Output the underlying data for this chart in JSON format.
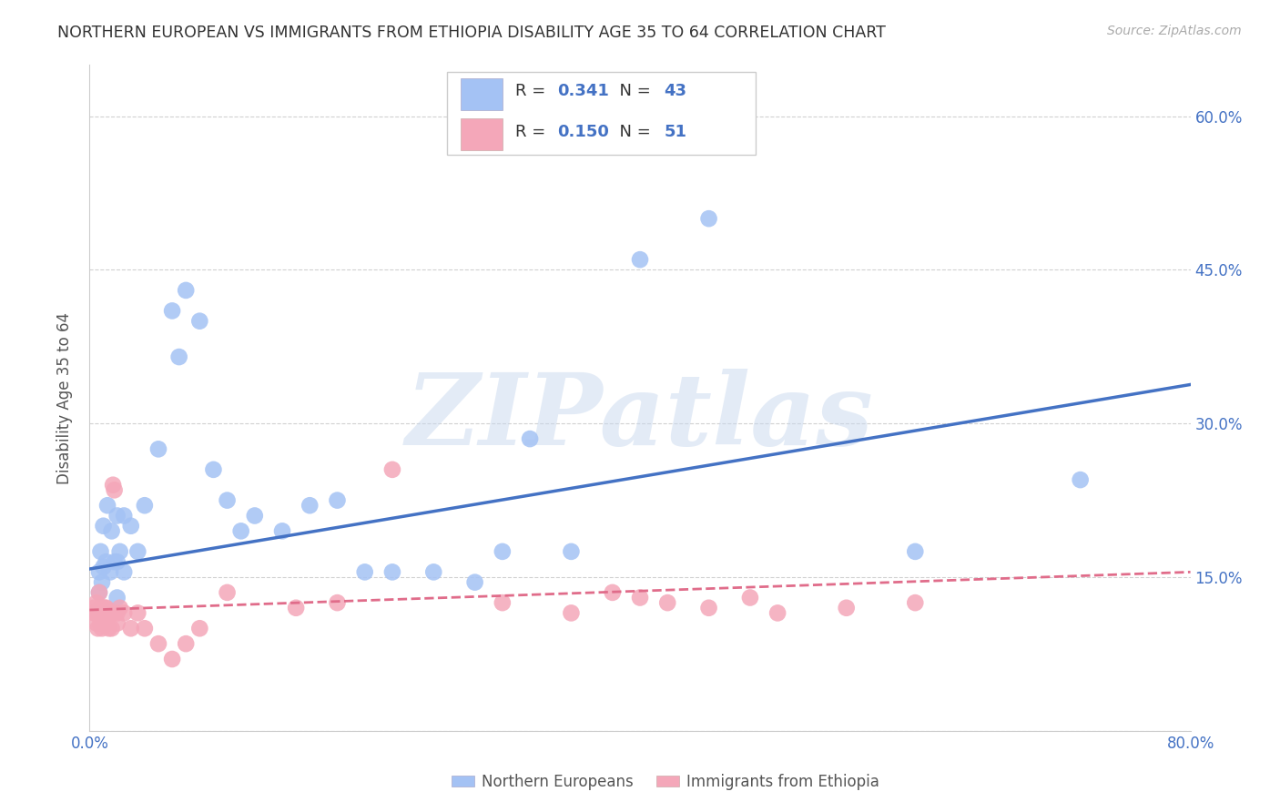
{
  "title": "NORTHERN EUROPEAN VS IMMIGRANTS FROM ETHIOPIA DISABILITY AGE 35 TO 64 CORRELATION CHART",
  "source": "Source: ZipAtlas.com",
  "ylabel": "Disability Age 35 to 64",
  "xlim": [
    0,
    0.8
  ],
  "ylim": [
    0,
    0.65
  ],
  "yticks": [
    0.0,
    0.15,
    0.3,
    0.45,
    0.6
  ],
  "right_yticks": [
    0.15,
    0.3,
    0.45,
    0.6
  ],
  "right_yticklabels": [
    "15.0%",
    "30.0%",
    "45.0%",
    "60.0%"
  ],
  "blue_color": "#a4c2f4",
  "pink_color": "#f4a7b9",
  "blue_line_color": "#4472c4",
  "pink_line_color": "#e06c8a",
  "R_blue": "0.341",
  "N_blue": "43",
  "R_pink": "0.150",
  "N_pink": "51",
  "blue_line_x": [
    0.0,
    0.8
  ],
  "blue_line_y": [
    0.158,
    0.338
  ],
  "pink_line_x": [
    0.0,
    0.8
  ],
  "pink_line_y": [
    0.118,
    0.155
  ],
  "blue_x": [
    0.007,
    0.007,
    0.008,
    0.009,
    0.01,
    0.01,
    0.012,
    0.013,
    0.015,
    0.016,
    0.018,
    0.02,
    0.02,
    0.02,
    0.022,
    0.025,
    0.025,
    0.03,
    0.035,
    0.04,
    0.05,
    0.06,
    0.065,
    0.07,
    0.08,
    0.09,
    0.1,
    0.11,
    0.12,
    0.14,
    0.16,
    0.18,
    0.2,
    0.22,
    0.25,
    0.28,
    0.3,
    0.32,
    0.35,
    0.4,
    0.45,
    0.6,
    0.72
  ],
  "blue_y": [
    0.135,
    0.155,
    0.175,
    0.145,
    0.16,
    0.2,
    0.165,
    0.22,
    0.155,
    0.195,
    0.165,
    0.13,
    0.165,
    0.21,
    0.175,
    0.155,
    0.21,
    0.2,
    0.175,
    0.22,
    0.275,
    0.41,
    0.365,
    0.43,
    0.4,
    0.255,
    0.225,
    0.195,
    0.21,
    0.195,
    0.22,
    0.225,
    0.155,
    0.155,
    0.155,
    0.145,
    0.175,
    0.285,
    0.175,
    0.46,
    0.5,
    0.175,
    0.245
  ],
  "pink_x": [
    0.003,
    0.003,
    0.004,
    0.005,
    0.005,
    0.006,
    0.006,
    0.007,
    0.007,
    0.008,
    0.008,
    0.009,
    0.009,
    0.01,
    0.01,
    0.011,
    0.011,
    0.012,
    0.012,
    0.013,
    0.014,
    0.015,
    0.016,
    0.016,
    0.017,
    0.018,
    0.02,
    0.02,
    0.022,
    0.025,
    0.03,
    0.035,
    0.04,
    0.05,
    0.06,
    0.07,
    0.08,
    0.1,
    0.15,
    0.18,
    0.22,
    0.3,
    0.35,
    0.38,
    0.4,
    0.42,
    0.45,
    0.48,
    0.5,
    0.55,
    0.6
  ],
  "pink_y": [
    0.115,
    0.12,
    0.115,
    0.105,
    0.125,
    0.1,
    0.115,
    0.115,
    0.135,
    0.105,
    0.12,
    0.1,
    0.115,
    0.105,
    0.12,
    0.11,
    0.12,
    0.105,
    0.12,
    0.115,
    0.1,
    0.115,
    0.1,
    0.115,
    0.24,
    0.235,
    0.105,
    0.115,
    0.12,
    0.115,
    0.1,
    0.115,
    0.1,
    0.085,
    0.07,
    0.085,
    0.1,
    0.135,
    0.12,
    0.125,
    0.255,
    0.125,
    0.115,
    0.135,
    0.13,
    0.125,
    0.12,
    0.13,
    0.115,
    0.12,
    0.125
  ],
  "watermark_text": "ZIPatlas",
  "background_color": "#ffffff",
  "grid_color": "#cccccc",
  "title_color": "#333333",
  "tick_color": "#4472c4",
  "legend_label_blue": "Northern Europeans",
  "legend_label_pink": "Immigrants from Ethiopia"
}
